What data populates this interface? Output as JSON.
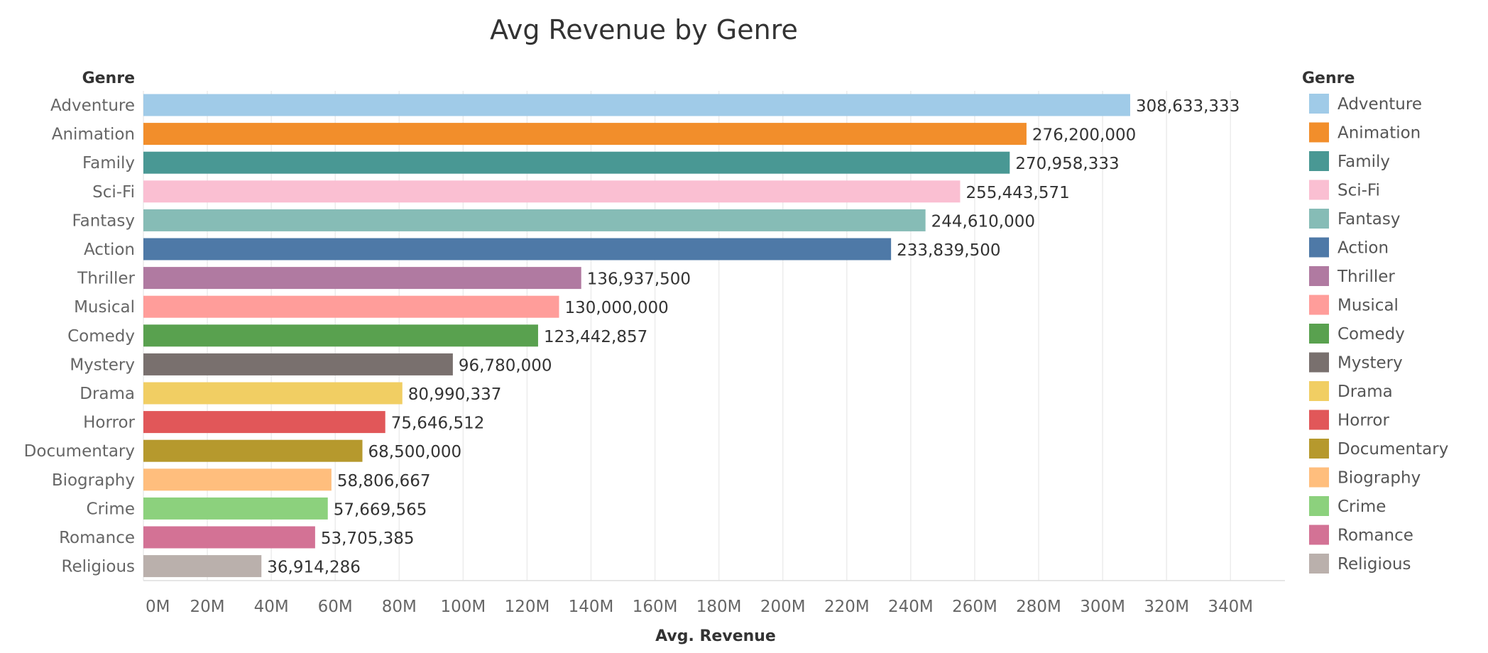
{
  "chart_data": {
    "type": "bar",
    "orientation": "horizontal",
    "title": "Avg Revenue by Genre",
    "row_header": "Genre",
    "xlabel": "Avg. Revenue",
    "xlim": [
      0,
      360000000
    ],
    "x_ticks": [
      {
        "value": 0,
        "label": "0M"
      },
      {
        "value": 20000000,
        "label": "20M"
      },
      {
        "value": 40000000,
        "label": "40M"
      },
      {
        "value": 60000000,
        "label": "60M"
      },
      {
        "value": 80000000,
        "label": "80M"
      },
      {
        "value": 100000000,
        "label": "100M"
      },
      {
        "value": 120000000,
        "label": "120M"
      },
      {
        "value": 140000000,
        "label": "140M"
      },
      {
        "value": 160000000,
        "label": "160M"
      },
      {
        "value": 180000000,
        "label": "180M"
      },
      {
        "value": 200000000,
        "label": "200M"
      },
      {
        "value": 220000000,
        "label": "220M"
      },
      {
        "value": 240000000,
        "label": "240M"
      },
      {
        "value": 260000000,
        "label": "260M"
      },
      {
        "value": 280000000,
        "label": "280M"
      },
      {
        "value": 300000000,
        "label": "300M"
      },
      {
        "value": 320000000,
        "label": "320M"
      },
      {
        "value": 340000000,
        "label": "340M"
      }
    ],
    "grid": true,
    "legend": {
      "title": "Genre",
      "placement": "right"
    },
    "bars": [
      {
        "category": "Adventure",
        "value": 308633333,
        "label": "308,633,333",
        "color": "#A0CBE8"
      },
      {
        "category": "Animation",
        "value": 276200000,
        "label": "276,200,000",
        "color": "#F28E2B"
      },
      {
        "category": "Family",
        "value": 270958333,
        "label": "270,958,333",
        "color": "#499894"
      },
      {
        "category": "Sci-Fi",
        "value": 255443571,
        "label": "255,443,571",
        "color": "#FABFD2"
      },
      {
        "category": "Fantasy",
        "value": 244610000,
        "label": "244,610,000",
        "color": "#86BCB6"
      },
      {
        "category": "Action",
        "value": 233839500,
        "label": "233,839,500",
        "color": "#4E79A7"
      },
      {
        "category": "Thriller",
        "value": 136937500,
        "label": "136,937,500",
        "color": "#B07AA1"
      },
      {
        "category": "Musical",
        "value": 130000000,
        "label": "130,000,000",
        "color": "#FF9D9A"
      },
      {
        "category": "Comedy",
        "value": 123442857,
        "label": "123,442,857",
        "color": "#59A14F"
      },
      {
        "category": "Mystery",
        "value": 96780000,
        "label": "96,780,000",
        "color": "#79706E"
      },
      {
        "category": "Drama",
        "value": 80990337,
        "label": "80,990,337",
        "color": "#F1CE63"
      },
      {
        "category": "Horror",
        "value": 75646512,
        "label": "75,646,512",
        "color": "#E15759"
      },
      {
        "category": "Documentary",
        "value": 68500000,
        "label": "68,500,000",
        "color": "#B6992D"
      },
      {
        "category": "Biography",
        "value": 58806667,
        "label": "58,806,667",
        "color": "#FFBE7D"
      },
      {
        "category": "Crime",
        "value": 57669565,
        "label": "57,669,565",
        "color": "#8CD17D"
      },
      {
        "category": "Romance",
        "value": 53705385,
        "label": "53,705,385",
        "color": "#D37295"
      },
      {
        "category": "Religious",
        "value": 36914286,
        "label": "36,914,286",
        "color": "#BAB0AC"
      }
    ]
  }
}
